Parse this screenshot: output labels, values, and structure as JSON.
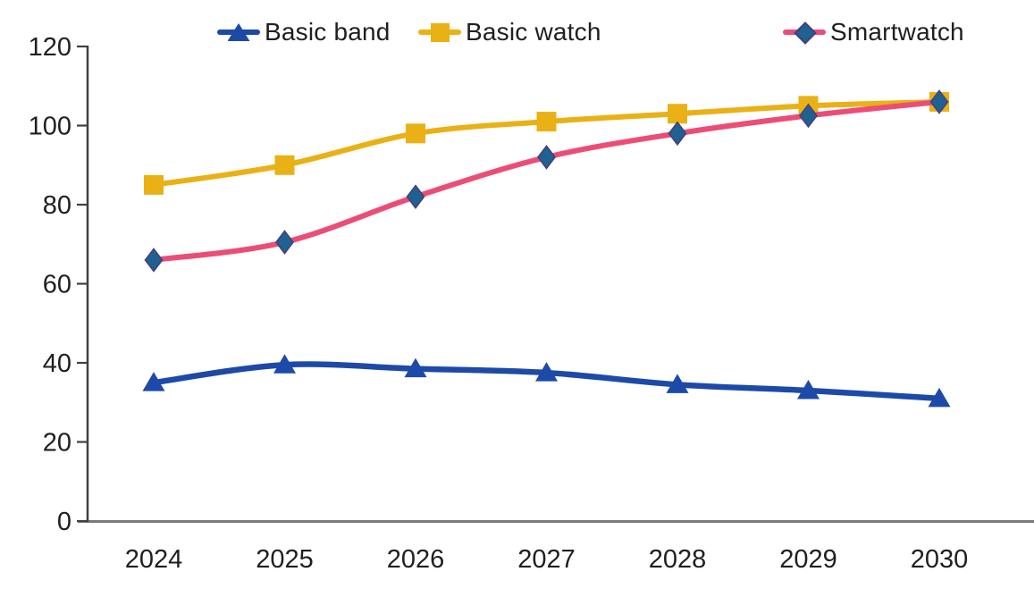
{
  "chart_data": {
    "type": "line",
    "title": "",
    "xlabel": "",
    "ylabel": "",
    "categories": [
      "2024",
      "2025",
      "2026",
      "2027",
      "2028",
      "2029",
      "2030"
    ],
    "series": [
      {
        "name": "Basic band",
        "marker": "triangle",
        "line_color": "#1d4aa8",
        "marker_color": "#1d4aa8",
        "values": [
          35,
          39.5,
          38.5,
          37.5,
          34.5,
          33,
          31
        ]
      },
      {
        "name": "Basic watch",
        "marker": "square",
        "line_color": "#e9b115",
        "marker_color": "#e9b115",
        "values": [
          85,
          90,
          98,
          101,
          103,
          105,
          106
        ]
      },
      {
        "name": "Smartwatch",
        "marker": "diamond",
        "line_color": "#ec4d77",
        "marker_color": "#1f6191",
        "marker_outline": "#46407e",
        "values": [
          66,
          70.5,
          82,
          92,
          98,
          102.5,
          106
        ]
      }
    ],
    "y_ticks": [
      0,
      20,
      40,
      60,
      80,
      100,
      120
    ],
    "ylim": [
      0,
      120
    ],
    "grid": false,
    "legend_position": "top",
    "colors": {
      "text": "#1f1f1f",
      "y_axis": "#404040",
      "x_axis": "#7a7a7a",
      "background": "#ffffff"
    }
  }
}
